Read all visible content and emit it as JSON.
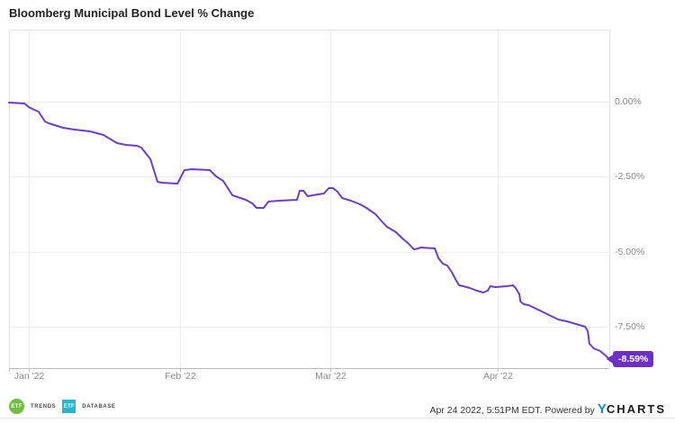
{
  "title": "Bloomberg Municipal Bond Level % Change",
  "chart_data": {
    "type": "line",
    "title": "Bloomberg Municipal Bond Level % Change",
    "x_unit": "day of 2022 (1 = Jan 1)",
    "x_axis": {
      "domain": [
        0.32,
        111.8
      ],
      "ticks": [
        {
          "pos": 4,
          "label": "Jan '22"
        },
        {
          "pos": 32,
          "label": "Feb '22"
        },
        {
          "pos": 60,
          "label": "Mar '22"
        },
        {
          "pos": 91,
          "label": "Apr '22"
        }
      ]
    },
    "y_axis": {
      "side": "right",
      "domain_top": 2.4,
      "domain_bottom": -8.88,
      "ticks": [
        {
          "value": 0,
          "label": "0.00%"
        },
        {
          "value": -2.5,
          "label": "-2.50%"
        },
        {
          "value": -5,
          "label": "-5.00%"
        },
        {
          "value": -7.5,
          "label": "-7.50%"
        }
      ]
    },
    "grid": true,
    "legend": "none",
    "line_color": "#6c3ec6",
    "grid_color": "#ededed",
    "border_color": "#e2e2e2",
    "axis_color": "#bdbdbd",
    "series": [
      {
        "name": "Bloomberg Municipal Bond Level % Change",
        "color": "#6c3ec6",
        "points": [
          [
            0.3,
            -0.03
          ],
          [
            3.2,
            -0.06
          ],
          [
            4.0,
            -0.18
          ],
          [
            5.0,
            -0.27
          ],
          [
            5.8,
            -0.33
          ],
          [
            7.0,
            -0.66
          ],
          [
            7.7,
            -0.72
          ],
          [
            10.4,
            -0.87
          ],
          [
            12.5,
            -0.93
          ],
          [
            15.4,
            -0.99
          ],
          [
            17.9,
            -1.11
          ],
          [
            18.7,
            -1.2
          ],
          [
            20.4,
            -1.38
          ],
          [
            22.0,
            -1.44
          ],
          [
            24.1,
            -1.47
          ],
          [
            24.9,
            -1.53
          ],
          [
            26.6,
            -1.92
          ],
          [
            27.9,
            -2.67
          ],
          [
            28.7,
            -2.7
          ],
          [
            31.6,
            -2.73
          ],
          [
            32.9,
            -2.28
          ],
          [
            34.3,
            -2.25
          ],
          [
            37.6,
            -2.28
          ],
          [
            38.8,
            -2.49
          ],
          [
            40.1,
            -2.64
          ],
          [
            41.8,
            -3.12
          ],
          [
            44.3,
            -3.27
          ],
          [
            45.5,
            -3.39
          ],
          [
            46.3,
            -3.54
          ],
          [
            47.6,
            -3.54
          ],
          [
            48.5,
            -3.33
          ],
          [
            50.5,
            -3.3
          ],
          [
            53.8,
            -3.27
          ],
          [
            54.3,
            -2.97
          ],
          [
            55.0,
            -2.97
          ],
          [
            55.8,
            -3.15
          ],
          [
            56.7,
            -3.12
          ],
          [
            58.8,
            -3.06
          ],
          [
            59.7,
            -2.88
          ],
          [
            60.5,
            -2.88
          ],
          [
            61.3,
            -3.0
          ],
          [
            62.2,
            -3.21
          ],
          [
            63.8,
            -3.3
          ],
          [
            65.5,
            -3.42
          ],
          [
            66.7,
            -3.54
          ],
          [
            68.4,
            -3.75
          ],
          [
            69.4,
            -3.96
          ],
          [
            70.5,
            -4.17
          ],
          [
            72.2,
            -4.35
          ],
          [
            73.4,
            -4.56
          ],
          [
            74.4,
            -4.71
          ],
          [
            75.5,
            -4.92
          ],
          [
            76.4,
            -4.89
          ],
          [
            76.7,
            -4.86
          ],
          [
            79.4,
            -4.89
          ],
          [
            80.1,
            -5.22
          ],
          [
            80.9,
            -5.4
          ],
          [
            81.7,
            -5.46
          ],
          [
            82.6,
            -5.7
          ],
          [
            83.4,
            -5.97
          ],
          [
            83.9,
            -6.12
          ],
          [
            84.7,
            -6.15
          ],
          [
            85.9,
            -6.21
          ],
          [
            87.2,
            -6.3
          ],
          [
            88.4,
            -6.36
          ],
          [
            89.2,
            -6.3
          ],
          [
            89.7,
            -6.15
          ],
          [
            90.6,
            -6.18
          ],
          [
            92.8,
            -6.15
          ],
          [
            93.9,
            -6.12
          ],
          [
            94.4,
            -6.21
          ],
          [
            95.1,
            -6.42
          ],
          [
            95.3,
            -6.66
          ],
          [
            95.9,
            -6.75
          ],
          [
            96.8,
            -6.78
          ],
          [
            98.9,
            -6.96
          ],
          [
            100.6,
            -7.11
          ],
          [
            102.3,
            -7.26
          ],
          [
            103.9,
            -7.32
          ],
          [
            105.6,
            -7.41
          ],
          [
            107.3,
            -7.5
          ],
          [
            107.8,
            -7.65
          ],
          [
            108.1,
            -8.07
          ],
          [
            108.9,
            -8.22
          ],
          [
            110.1,
            -8.31
          ],
          [
            111.1,
            -8.46
          ],
          [
            111.8,
            -8.59
          ]
        ]
      }
    ],
    "last_value": {
      "label": "-8.59%",
      "value": -8.59,
      "badge_color": "#6d2fc4"
    }
  },
  "footer": {
    "logos": [
      {
        "icon_text": "ETF",
        "icon_color": "#70bf44",
        "label": "TRENDS"
      },
      {
        "icon_text": "ETF",
        "icon_color": "#28b6d4",
        "label": "DATABASE"
      }
    ],
    "timestamp": "Apr 24 2022, 5:51PM EDT. Powered by",
    "ycharts": {
      "y": "Y",
      "charts": "CHARTS",
      "y_color": "#0e8bd1"
    }
  }
}
